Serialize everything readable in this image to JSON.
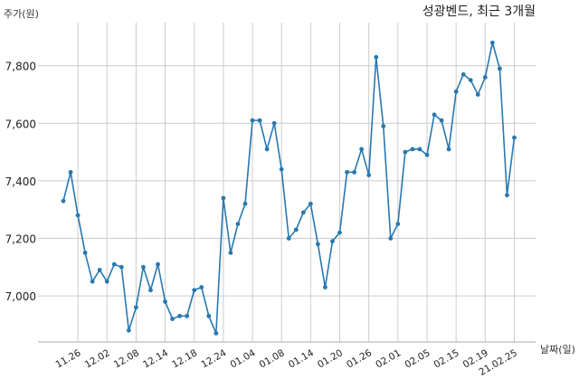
{
  "chart_data": {
    "type": "line",
    "title": "성광벤드, 최근 3개월",
    "ylabel": "주가(원)",
    "xlabel": "날짜(일)",
    "ylim": [
      6840,
      7950
    ],
    "yticks": [
      7000,
      7200,
      7400,
      7600,
      7800
    ],
    "ytick_labels": [
      "7,000",
      "7,200",
      "7,400",
      "7,600",
      "7,800"
    ],
    "xtick_labels": [
      "11.26",
      "12.02",
      "12.08",
      "12.14",
      "12.18",
      "12.24",
      "01.04",
      "01.08",
      "01.14",
      "01.20",
      "01.26",
      "02.01",
      "02.05",
      "02.15",
      "02.19",
      "21.02.25"
    ],
    "xtick_indices": [
      2,
      6,
      10,
      14,
      18,
      22,
      26,
      30,
      34,
      38,
      42,
      46,
      50,
      54,
      58,
      62
    ],
    "grid": true,
    "line_color": "#2878b0",
    "series": [
      {
        "values": [
          7330,
          7430,
          7280,
          7150,
          7050,
          7090,
          7050,
          7110,
          7100,
          6880,
          6960,
          7100,
          7020,
          7110,
          6980,
          6920,
          6930,
          6930,
          7020,
          7030,
          6930,
          6870,
          7340,
          7150,
          7250,
          7320,
          7610,
          7610,
          7510,
          7600,
          7440,
          7200,
          7230,
          7290,
          7320,
          7180,
          7030,
          7190,
          7220,
          7430,
          7430,
          7510,
          7420,
          7830,
          7590,
          7200,
          7250,
          7500,
          7510,
          7510,
          7490,
          7630,
          7610,
          7510,
          7710,
          7770,
          7750,
          7700,
          7760,
          7880,
          7790,
          7350,
          7550
        ]
      }
    ]
  }
}
